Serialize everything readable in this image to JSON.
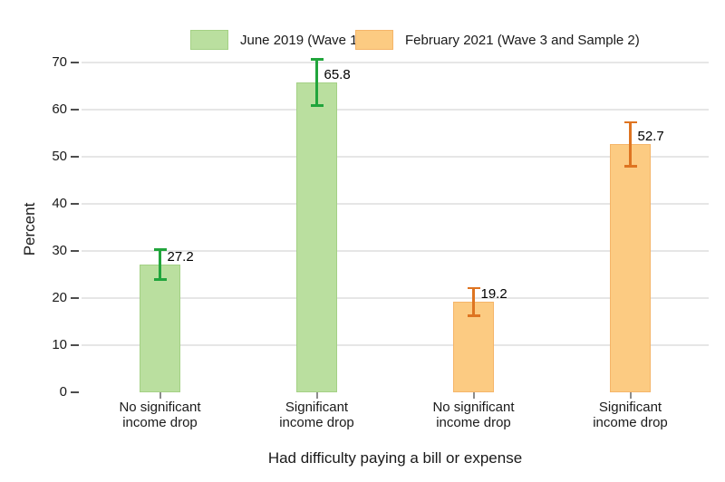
{
  "chart_data": {
    "type": "bar",
    "title": "",
    "xlabel": "Had difficulty paying a bill or expense",
    "ylabel": "Percent",
    "ylim": [
      0,
      70
    ],
    "yticks": [
      0,
      10,
      20,
      30,
      40,
      50,
      60,
      70
    ],
    "grid": "horizontal-only",
    "legend_position": "top",
    "background": "#ffffff",
    "series": [
      {
        "name": "June 2019 (Wave 1)",
        "fill": "#badf9f",
        "edge": "#a4d185",
        "error_color": "#21a53c"
      },
      {
        "name": "February 2021 (Wave 3 and Sample 2)",
        "fill": "#fccb82",
        "edge": "#f5b569",
        "error_color": "#de7421"
      }
    ],
    "bars": [
      {
        "series": 0,
        "category_lines": [
          "No significant",
          "income drop"
        ],
        "value": 27.2,
        "label": "27.2",
        "ci_low": 24.0,
        "ci_high": 30.3
      },
      {
        "series": 0,
        "category_lines": [
          "Significant",
          "income drop"
        ],
        "value": 65.8,
        "label": "65.8",
        "ci_low": 60.9,
        "ci_high": 70.7
      },
      {
        "series": 1,
        "category_lines": [
          "No significant",
          "income drop"
        ],
        "value": 19.2,
        "label": "19.2",
        "ci_low": 16.3,
        "ci_high": 22.2
      },
      {
        "series": 1,
        "category_lines": [
          "Significant",
          "income drop"
        ],
        "value": 52.7,
        "label": "52.7",
        "ci_low": 48.0,
        "ci_high": 57.4
      }
    ]
  }
}
